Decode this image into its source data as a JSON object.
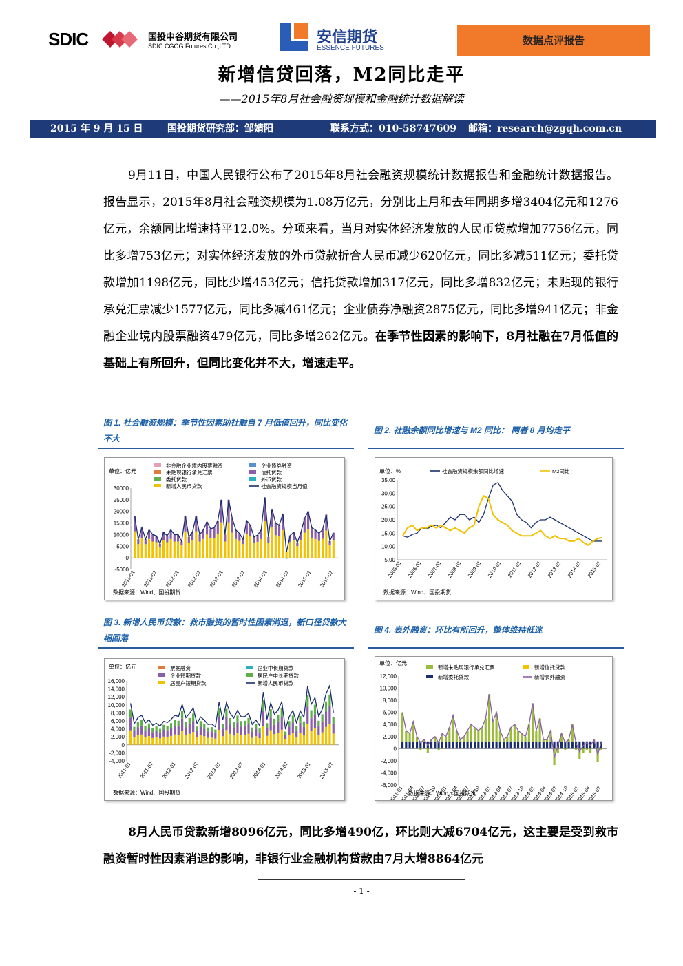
{
  "header": {
    "sdic_logo": "SDIC",
    "sdic_cn": "国投中谷期货有限公司",
    "sdic_en": "SDIC CGOG Futures Co.,LTD",
    "essence_cn": "安信期货",
    "essence_en": "ESSENCE FUTURES",
    "report_type": "数据点评报告"
  },
  "title": "新增信贷回落，M2同比走平",
  "subtitle": "——2015年8月社会融资规模和金融统计数据解读",
  "info": {
    "date": "2015 年 9 月 15 日",
    "dept": "国投期货研究部：邹婧阳",
    "contact": "联系方式：010-58747609",
    "email": "邮箱：research@zgqh.com.cn"
  },
  "para1_normal": "9月11日，中国人民银行公布了2015年8月社会融资规模统计数据报告和金融统计数据报告。报告显示，2015年8月社会融资规模为1.08万亿元，分别比上月和去年同期多增3404亿元和1276亿元，余额同比增速持平12.0%。分项来看，当月对实体经济发放的人民币贷款增加7756亿元，同比多增753亿元；对实体经济发放的外币贷款折合人民币减少620亿元，同比多减511亿元；委托贷款增加1198亿元，同比少增453亿元；信托贷款增加317亿元，同比多增832亿元；未贴现的银行承兑汇票减少1577亿元，同比多减461亿元；企业债券净融资2875亿元，同比多增941亿元；非金融企业境内股票融资479亿元，同比多增262亿元。",
  "para1_bold": "在季节性因素的影响下，8月社融在7月低值的基础上有所回升，但同比变化并不大，增速走平。",
  "para2_bold": "8月人民币贷款新增8096亿元，同比多增490亿，环比则大减6704亿元，这主要是受到救市融资暂时性因素消退的影响，非银行业金融机构贷款由7月大增8864亿元",
  "figures": {
    "fig1_caption": "图 1. 社会融资规模：季节性因素助社融自 7 月低值回升，同比变化不大",
    "fig2_caption": "图 2. 社融余额同比增速与 M2 同比： 两者 8 月均走平",
    "fig3_caption": "图 3. 新增人民币贷款：救市融资的暂时性因素消退，新口径贷款大幅回落",
    "fig4_caption": "图 4. 表外融资：环比有所回升，整体维持低迷",
    "source": "数据来源：Wind、国投期货"
  },
  "page_number": "- 1 -",
  "chart_data": [
    {
      "type": "bar",
      "unit": "单位：亿元",
      "legend": [
        "非金融企业境内股票融资",
        "企业债券融资",
        "未贴现银行承兑汇票",
        "信托贷款",
        "委托贷款",
        "外币贷款",
        "新增人民币贷款",
        "社会融资规模当月值"
      ],
      "y_ticks": [
        "-5000",
        "0",
        "5000",
        "10000",
        "15000",
        "20000",
        "25000",
        "30000"
      ],
      "x_ticks": [
        "2011-01",
        "2011-07",
        "2012-01",
        "2012-07",
        "2013-01",
        "2013-07",
        "2014-01",
        "2014-07",
        "2015-01",
        "2015-07"
      ],
      "ylim": [
        -5000,
        30000
      ],
      "total": [
        18000,
        8000,
        13000,
        8000,
        12000,
        10000,
        9500,
        6000,
        11000,
        9500,
        12000,
        10000,
        10000,
        7000,
        18000,
        9000,
        11000,
        18000,
        10000,
        12000,
        15500,
        12500,
        13000,
        16000,
        25000,
        10000,
        25000,
        17000,
        12000,
        10500,
        8000,
        16000,
        14000,
        9000,
        9800,
        12000,
        26000,
        9000,
        21000,
        15000,
        14000,
        19000,
        2500,
        9600,
        11000,
        6500,
        11000,
        17000,
        20000,
        13000,
        12000,
        10500,
        12200,
        18600,
        7200,
        10800
      ]
    },
    {
      "type": "line",
      "unit": "单位：%",
      "legend": [
        "社会融资规模余额同比增速",
        "M2同比"
      ],
      "y_ticks": [
        "5.00",
        "10.00",
        "15.00",
        "20.00",
        "25.00",
        "30.00",
        "35.00"
      ],
      "x_ticks": [
        "2005-01",
        "2006-01",
        "2007-01",
        "2008-01",
        "2009-01",
        "2010-01",
        "2011-01",
        "2012-01",
        "2013-01",
        "2014-01",
        "2015-01"
      ],
      "ylim": [
        5,
        35
      ],
      "series": [
        {
          "name": "社会融资规模余额同比增速",
          "values": [
            14,
            13.5,
            14.5,
            15,
            17,
            16.5,
            17.5,
            18,
            17,
            19,
            21,
            20,
            22,
            22,
            20,
            21,
            19,
            22,
            28,
            33,
            34,
            31,
            29,
            27,
            22,
            20,
            19,
            17,
            19,
            20,
            20,
            21,
            20,
            19,
            18,
            17,
            16,
            15,
            14,
            13,
            12,
            12,
            12
          ]
        },
        {
          "name": "M2同比",
          "values": [
            14,
            17,
            18,
            16,
            17,
            17,
            18,
            17,
            18,
            17,
            16,
            17,
            16,
            15,
            17,
            18,
            25,
            29,
            28,
            22,
            20,
            19,
            18,
            16,
            15,
            14,
            14,
            14,
            15,
            16,
            14,
            13,
            14,
            13,
            13,
            12,
            12,
            13,
            11.5,
            10.5,
            12,
            13,
            13.3
          ]
        }
      ]
    },
    {
      "type": "bar",
      "unit": "单位：亿元",
      "legend": [
        "票据融资",
        "企业中长期贷款",
        "企业短期贷款",
        "居民户中长期贷款",
        "居民户短期贷款",
        "新增人民币贷款"
      ],
      "y_ticks": [
        "-4,000",
        "-2,000",
        "0",
        "2,000",
        "4,000",
        "6,000",
        "8,000",
        "10,000",
        "12,000",
        "14,000",
        "16,000"
      ],
      "x_ticks": [
        "2011-01",
        "2011-07",
        "2012-01",
        "2012-07",
        "2013-01",
        "2013-07",
        "2014-01",
        "2014-07",
        "2015-01",
        "2015-07"
      ],
      "ylim": [
        -4000,
        16000
      ],
      "total": [
        10400,
        5300,
        6800,
        7400,
        5500,
        6300,
        4900,
        5400,
        4700,
        5900,
        5600,
        6400,
        7400,
        7100,
        10100,
        6800,
        7900,
        9200,
        5400,
        7000,
        6200,
        5100,
        5200,
        4500,
        10700,
        6200,
        10600,
        7900,
        6700,
        8600,
        7000,
        7100,
        7900,
        5100,
        6200,
        4800,
        13200,
        6400,
        10500,
        7700,
        8700,
        10800,
        3900,
        7000,
        8600,
        5500,
        8500,
        6900,
        14700,
        10200,
        11800,
        7100,
        9000,
        12800,
        14800,
        8096
      ]
    },
    {
      "type": "bar",
      "unit": "单位：亿元",
      "legend": [
        "新增未贴现银行承兑汇票",
        "新增信托贷款",
        "新增委托贷款",
        "新增表外融资"
      ],
      "y_ticks": [
        "-6,000",
        "-4,000",
        "-2,000",
        "0",
        "2,000",
        "4,000",
        "6,000",
        "8,000",
        "10,000",
        "12,000"
      ],
      "x_ticks": [
        "2011-01",
        "2011-04",
        "2011-07",
        "2011-10",
        "2012-01",
        "2012-04",
        "2012-07",
        "2012-10",
        "2013-01",
        "2013-04",
        "2013-07",
        "2013-10",
        "2014-01",
        "2014-04",
        "2014-07",
        "2014-10",
        "2015-01",
        "2015-04",
        "2015-07"
      ],
      "ylim": [
        -6000,
        12000
      ],
      "total": [
        6000,
        3000,
        2500,
        4500,
        2000,
        1000,
        1500,
        500,
        1500,
        2000,
        1000,
        2500,
        2000,
        3500,
        5500,
        3000,
        1500,
        2000,
        3000,
        4000,
        3500,
        3000,
        3500,
        5000,
        9000,
        4500,
        6000,
        3000,
        1500,
        2000,
        3500,
        4000,
        3000,
        2500,
        2000,
        4000,
        7500,
        3000,
        5000,
        1500,
        1500,
        3000,
        -1500,
        500,
        2500,
        1000,
        1500,
        4000,
        1000,
        -500,
        500,
        1000,
        500,
        1500,
        -1000,
        1000
      ]
    }
  ]
}
